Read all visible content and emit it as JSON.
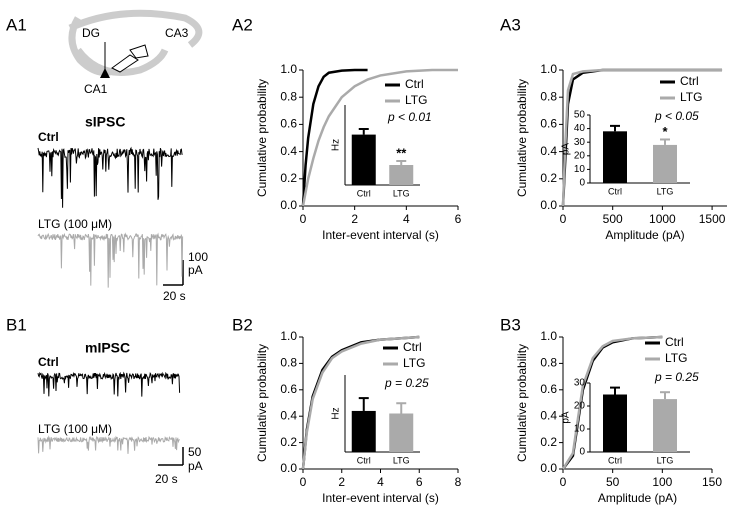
{
  "panel_labels": [
    "A1",
    "A2",
    "A3",
    "B1",
    "B2",
    "B3"
  ],
  "schematic": {
    "labels": [
      "DG",
      "CA3",
      "CA1"
    ]
  },
  "traces": [
    {
      "title": "sIPSC",
      "labels": [
        "Ctrl",
        "LTG (100 μM)"
      ],
      "scale_y": 100,
      "scale_unit": "pA",
      "scale_x": "20 s"
    },
    {
      "title": "mIPSC",
      "labels": [
        "Ctrl",
        "LTG (100 μM)"
      ],
      "scale_y": 50,
      "scale_unit": "pA",
      "scale_x": "20 s"
    }
  ],
  "chart_data": [
    {
      "type": "line",
      "x_label": "Inter-event interval (s)",
      "y_label": "Cumulative probability",
      "x": [
        0,
        0.1,
        0.2,
        0.4,
        0.6,
        0.8,
        1,
        1.5,
        2,
        2.5,
        3,
        4,
        5,
        6
      ],
      "series": [
        {
          "name": "Ctrl",
          "color": "#000000",
          "values": [
            0,
            0.3,
            0.5,
            0.75,
            0.88,
            0.95,
            0.98,
            0.995,
            1,
            1,
            null,
            null,
            null,
            null
          ]
        },
        {
          "name": "LTG",
          "color": "#aaaaaa",
          "values": [
            0,
            0.1,
            0.2,
            0.35,
            0.48,
            0.58,
            0.66,
            0.8,
            0.88,
            0.93,
            0.96,
            0.99,
            1,
            1
          ]
        }
      ],
      "xlim": [
        0,
        6
      ],
      "xticks": [
        0,
        2,
        4,
        6
      ],
      "ylim": [
        0,
        1
      ],
      "yticks": [
        {
          "value": 0,
          "label": "0.0"
        },
        0.2,
        0.4,
        0.6,
        0.8,
        {
          "value": 1,
          "label": "1.0"
        }
      ],
      "annotation": "p < 0.01"
    },
    {
      "type": "bar",
      "y_label": "Hz",
      "categories": [
        "Ctrl",
        "LTG"
      ],
      "values": [
        6.3,
        2.5
      ],
      "errors": [
        0.7,
        0.5
      ],
      "colors": [
        "#000000",
        "#aaaaaa"
      ],
      "ylim": [
        0,
        10
      ],
      "annotation": "**"
    },
    {
      "type": "line",
      "x_label": "Amplitude (pA)",
      "y_label": "Cumulative probability",
      "x": [
        0,
        20,
        50,
        100,
        200,
        400,
        1600
      ],
      "series": [
        {
          "name": "Ctrl",
          "color": "#000000",
          "values": [
            0,
            0.3,
            0.75,
            0.93,
            0.98,
            1,
            1
          ]
        },
        {
          "name": "LTG",
          "color": "#aaaaaa",
          "values": [
            0,
            0.4,
            0.85,
            0.97,
            0.99,
            1,
            1
          ]
        }
      ],
      "xlim": [
        0,
        1650
      ],
      "xticks": [
        0,
        500,
        1000,
        1500
      ],
      "ylim": [
        0,
        1
      ],
      "yticks": [
        {
          "value": 0,
          "label": "0.0"
        },
        0.2,
        0.4,
        0.6,
        0.8,
        {
          "value": 1,
          "label": "1.0"
        }
      ],
      "annotation": "p < 0.05"
    },
    {
      "type": "bar",
      "y_label": "pA",
      "categories": [
        "Ctrl",
        "LTG"
      ],
      "values": [
        38,
        28
      ],
      "errors": [
        4,
        4
      ],
      "colors": [
        "#000000",
        "#aaaaaa"
      ],
      "ylim": [
        0,
        50
      ],
      "yticks": [
        0,
        10,
        20,
        30,
        40,
        50
      ],
      "annotation": "*"
    },
    {
      "type": "line",
      "x_label": "Inter-event interval (s)",
      "y_label": "Cumulative probability",
      "x": [
        0,
        0.2,
        0.5,
        1,
        1.5,
        2,
        3,
        4,
        5,
        6
      ],
      "series": [
        {
          "name": "Ctrl",
          "color": "#000000",
          "values": [
            0,
            0.3,
            0.55,
            0.75,
            0.85,
            0.9,
            0.96,
            0.98,
            0.99,
            1
          ]
        },
        {
          "name": "LTG",
          "color": "#aaaaaa",
          "values": [
            0,
            0.28,
            0.53,
            0.73,
            0.84,
            0.89,
            0.95,
            0.98,
            0.99,
            1
          ]
        }
      ],
      "xlim": [
        0,
        8
      ],
      "xticks": [
        0,
        2,
        4,
        6,
        8
      ],
      "ylim": [
        0,
        1
      ],
      "yticks": [
        {
          "value": 0,
          "label": "0.0"
        },
        0.2,
        0.4,
        0.6,
        0.8,
        {
          "value": 1,
          "label": "1.0"
        }
      ],
      "annotation": "p = 0.25"
    },
    {
      "type": "bar",
      "y_label": "Hz",
      "categories": [
        "Ctrl",
        "LTG"
      ],
      "values": [
        1.6,
        1.5
      ],
      "errors": [
        0.5,
        0.4
      ],
      "colors": [
        "#000000",
        "#aaaaaa"
      ],
      "ylim": [
        0,
        3
      ]
    },
    {
      "type": "line",
      "x_label": "Amplitude (pA)",
      "y_label": "Cumulative probability",
      "x": [
        0,
        10,
        15,
        20,
        30,
        40,
        50,
        70,
        100
      ],
      "series": [
        {
          "name": "Ctrl",
          "color": "#000000",
          "values": [
            0,
            0.1,
            0.35,
            0.6,
            0.82,
            0.92,
            0.96,
            0.99,
            1
          ]
        },
        {
          "name": "LTG",
          "color": "#aaaaaa",
          "values": [
            0,
            0.12,
            0.38,
            0.63,
            0.84,
            0.93,
            0.97,
            0.99,
            1
          ]
        }
      ],
      "xlim": [
        0,
        150
      ],
      "xticks": [
        0,
        50,
        100,
        150
      ],
      "ylim": [
        0,
        1
      ],
      "yticks": [
        {
          "value": 0,
          "label": "0.0"
        },
        0.2,
        0.4,
        0.6,
        0.8,
        {
          "value": 1,
          "label": "1.0"
        }
      ],
      "annotation": "p = 0.25"
    },
    {
      "type": "bar",
      "y_label": "pA",
      "categories": [
        "Ctrl",
        "LTG"
      ],
      "values": [
        25,
        23
      ],
      "errors": [
        3,
        3
      ],
      "colors": [
        "#000000",
        "#aaaaaa"
      ],
      "ylim": [
        0,
        30
      ],
      "yticks": [
        0,
        10,
        20,
        30
      ]
    }
  ]
}
